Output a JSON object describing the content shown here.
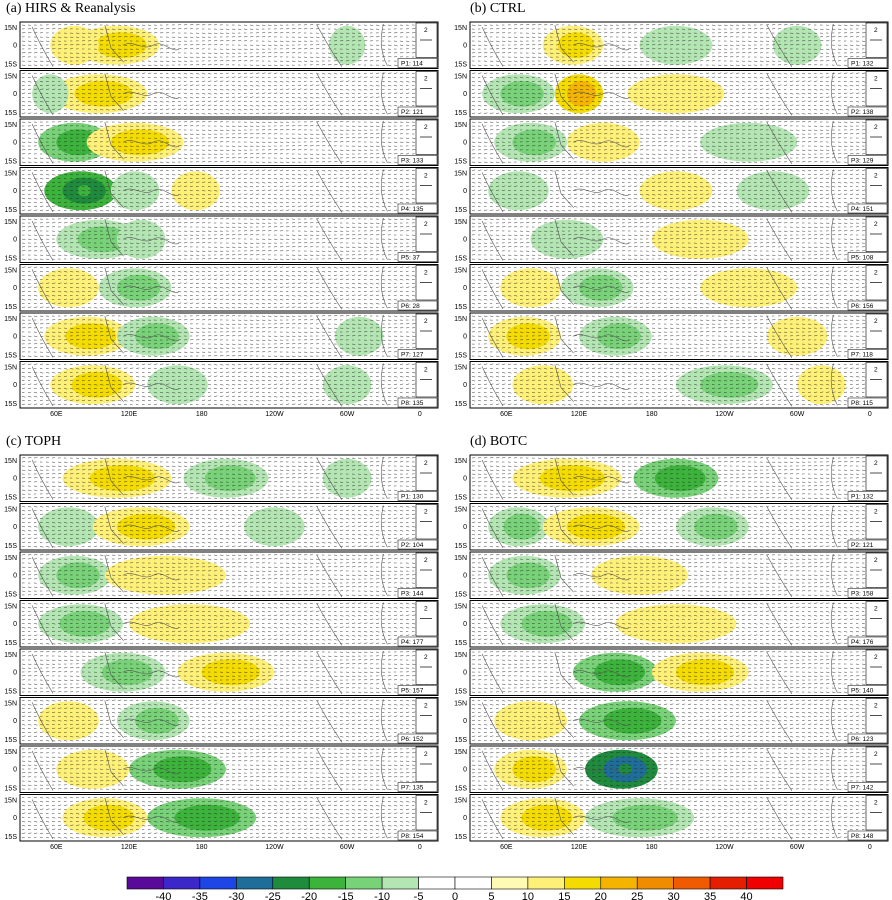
{
  "chart_data": {
    "type": "heatmap",
    "description_units": "OLR anomaly shading with wind anomaly vectors, 8 phases per panel",
    "panels": [
      {
        "label": "(a) HIRS & Reanalysis",
        "phases": [
          {
            "name": "P1",
            "count": "114"
          },
          {
            "name": "P2",
            "count": "121"
          },
          {
            "name": "P3",
            "count": "133"
          },
          {
            "name": "P4",
            "count": "135"
          },
          {
            "name": "P5",
            "count": "37"
          },
          {
            "name": "P6",
            "count": "28"
          },
          {
            "name": "P7",
            "count": "127"
          },
          {
            "name": "P8",
            "count": "135"
          }
        ],
        "blobs": [
          {
            "row": 0,
            "lon": 110,
            "w": 35,
            "v": 15
          },
          {
            "row": 0,
            "lon": 75,
            "w": 20,
            "v": 10
          },
          {
            "row": 0,
            "lon": 300,
            "w": 15,
            "v": -10
          },
          {
            "row": 1,
            "lon": 95,
            "w": 40,
            "v": 15
          },
          {
            "row": 1,
            "lon": 55,
            "w": 15,
            "v": -10
          },
          {
            "row": 2,
            "lon": 75,
            "w": 30,
            "v": -20
          },
          {
            "row": 2,
            "lon": 125,
            "w": 40,
            "v": 15
          },
          {
            "row": 3,
            "lon": 80,
            "w": 30,
            "v": -25
          },
          {
            "row": 3,
            "lon": 125,
            "w": 20,
            "v": -10
          },
          {
            "row": 3,
            "lon": 175,
            "w": 20,
            "v": 10
          },
          {
            "row": 4,
            "lon": 95,
            "w": 35,
            "v": -15
          },
          {
            "row": 4,
            "lon": 130,
            "w": 20,
            "v": -10
          },
          {
            "row": 5,
            "lon": 125,
            "w": 30,
            "v": -15
          },
          {
            "row": 5,
            "lon": 70,
            "w": 25,
            "v": 10
          },
          {
            "row": 6,
            "lon": 85,
            "w": 35,
            "v": 15
          },
          {
            "row": 6,
            "lon": 140,
            "w": 30,
            "v": -15
          },
          {
            "row": 6,
            "lon": 310,
            "w": 20,
            "v": -10
          },
          {
            "row": 7,
            "lon": 90,
            "w": 35,
            "v": 15
          },
          {
            "row": 7,
            "lon": 160,
            "w": 25,
            "v": -10
          },
          {
            "row": 7,
            "lon": 300,
            "w": 20,
            "v": -10
          }
        ]
      },
      {
        "label": "(b) CTRL",
        "phases": [
          {
            "name": "P1",
            "count": "132"
          },
          {
            "name": "P2",
            "count": "138"
          },
          {
            "name": "P3",
            "count": "129"
          },
          {
            "name": "P4",
            "count": "151"
          },
          {
            "name": "P5",
            "count": "108"
          },
          {
            "name": "P6",
            "count": "156"
          },
          {
            "name": "P7",
            "count": "118"
          },
          {
            "name": "P8",
            "count": "115"
          }
        ],
        "blobs": [
          {
            "row": 0,
            "lon": 115,
            "w": 25,
            "v": 15
          },
          {
            "row": 0,
            "lon": 200,
            "w": 30,
            "v": -10
          },
          {
            "row": 0,
            "lon": 300,
            "w": 20,
            "v": -10
          },
          {
            "row": 1,
            "lon": 70,
            "w": 30,
            "v": -15
          },
          {
            "row": 1,
            "lon": 120,
            "w": 20,
            "v": 20
          },
          {
            "row": 1,
            "lon": 200,
            "w": 40,
            "v": 10
          },
          {
            "row": 2,
            "lon": 80,
            "w": 30,
            "v": -15
          },
          {
            "row": 2,
            "lon": 140,
            "w": 30,
            "v": 10
          },
          {
            "row": 2,
            "lon": 260,
            "w": 40,
            "v": -10
          },
          {
            "row": 3,
            "lon": 70,
            "w": 25,
            "v": -10
          },
          {
            "row": 3,
            "lon": 200,
            "w": 30,
            "v": 10
          },
          {
            "row": 3,
            "lon": 280,
            "w": 30,
            "v": -10
          },
          {
            "row": 4,
            "lon": 110,
            "w": 30,
            "v": -10
          },
          {
            "row": 4,
            "lon": 220,
            "w": 40,
            "v": 10
          },
          {
            "row": 5,
            "lon": 80,
            "w": 25,
            "v": 10
          },
          {
            "row": 5,
            "lon": 135,
            "w": 30,
            "v": -15
          },
          {
            "row": 5,
            "lon": 260,
            "w": 40,
            "v": 10
          },
          {
            "row": 6,
            "lon": 75,
            "w": 30,
            "v": 15
          },
          {
            "row": 6,
            "lon": 150,
            "w": 30,
            "v": -15
          },
          {
            "row": 6,
            "lon": 300,
            "w": 25,
            "v": 10
          },
          {
            "row": 7,
            "lon": 90,
            "w": 25,
            "v": 10
          },
          {
            "row": 7,
            "lon": 240,
            "w": 40,
            "v": -15
          },
          {
            "row": 7,
            "lon": 320,
            "w": 20,
            "v": 10
          }
        ]
      },
      {
        "label": "(c) TOPH",
        "phases": [
          {
            "name": "P1",
            "count": "130"
          },
          {
            "name": "P2",
            "count": "104"
          },
          {
            "name": "P3",
            "count": "144"
          },
          {
            "name": "P4",
            "count": "177"
          },
          {
            "name": "P5",
            "count": "157"
          },
          {
            "name": "P6",
            "count": "152"
          },
          {
            "name": "P7",
            "count": "135"
          },
          {
            "name": "P8",
            "count": "154"
          }
        ],
        "blobs": [
          {
            "row": 0,
            "lon": 110,
            "w": 45,
            "v": 15
          },
          {
            "row": 0,
            "lon": 200,
            "w": 35,
            "v": -15
          },
          {
            "row": 0,
            "lon": 300,
            "w": 20,
            "v": -10
          },
          {
            "row": 1,
            "lon": 70,
            "w": 25,
            "v": -10
          },
          {
            "row": 1,
            "lon": 130,
            "w": 40,
            "v": 15
          },
          {
            "row": 1,
            "lon": 240,
            "w": 25,
            "v": -10
          },
          {
            "row": 2,
            "lon": 75,
            "w": 30,
            "v": -15
          },
          {
            "row": 2,
            "lon": 150,
            "w": 50,
            "v": 10
          },
          {
            "row": 3,
            "lon": 80,
            "w": 35,
            "v": -15
          },
          {
            "row": 3,
            "lon": 170,
            "w": 50,
            "v": 10
          },
          {
            "row": 4,
            "lon": 115,
            "w": 35,
            "v": -15
          },
          {
            "row": 4,
            "lon": 200,
            "w": 40,
            "v": 15
          },
          {
            "row": 5,
            "lon": 140,
            "w": 30,
            "v": -15
          },
          {
            "row": 5,
            "lon": 70,
            "w": 25,
            "v": 10
          },
          {
            "row": 6,
            "lon": 160,
            "w": 40,
            "v": -20
          },
          {
            "row": 6,
            "lon": 90,
            "w": 30,
            "v": 10
          },
          {
            "row": 7,
            "lon": 180,
            "w": 45,
            "v": -20
          },
          {
            "row": 7,
            "lon": 100,
            "w": 35,
            "v": 15
          }
        ]
      },
      {
        "label": "(d) BOTC",
        "phases": [
          {
            "name": "P1",
            "count": "132"
          },
          {
            "name": "P2",
            "count": "121"
          },
          {
            "name": "P3",
            "count": "158"
          },
          {
            "name": "P4",
            "count": "176"
          },
          {
            "name": "P5",
            "count": "140"
          },
          {
            "name": "P6",
            "count": "123"
          },
          {
            "name": "P7",
            "count": "142"
          },
          {
            "name": "P8",
            "count": "148"
          }
        ],
        "blobs": [
          {
            "row": 0,
            "lon": 110,
            "w": 45,
            "v": 15
          },
          {
            "row": 0,
            "lon": 200,
            "w": 35,
            "v": -20
          },
          {
            "row": 1,
            "lon": 70,
            "w": 25,
            "v": -15
          },
          {
            "row": 1,
            "lon": 130,
            "w": 40,
            "v": 15
          },
          {
            "row": 1,
            "lon": 230,
            "w": 30,
            "v": -15
          },
          {
            "row": 2,
            "lon": 75,
            "w": 30,
            "v": -15
          },
          {
            "row": 2,
            "lon": 170,
            "w": 40,
            "v": 10
          },
          {
            "row": 3,
            "lon": 90,
            "w": 35,
            "v": -15
          },
          {
            "row": 3,
            "lon": 200,
            "w": 50,
            "v": 10
          },
          {
            "row": 4,
            "lon": 150,
            "w": 35,
            "v": -20
          },
          {
            "row": 4,
            "lon": 220,
            "w": 40,
            "v": 15
          },
          {
            "row": 5,
            "lon": 160,
            "w": 40,
            "v": -20
          },
          {
            "row": 5,
            "lon": 80,
            "w": 30,
            "v": 10
          },
          {
            "row": 6,
            "lon": 155,
            "w": 30,
            "v": -30
          },
          {
            "row": 6,
            "lon": 80,
            "w": 30,
            "v": 15
          },
          {
            "row": 7,
            "lon": 170,
            "w": 45,
            "v": -15
          },
          {
            "row": 7,
            "lon": 90,
            "w": 35,
            "v": 15
          }
        ]
      }
    ],
    "latitude_labels": [
      "15N",
      "0",
      "15S"
    ],
    "longitude_ticks": [
      {
        "lon": 60,
        "label": "60E"
      },
      {
        "lon": 120,
        "label": "120E"
      },
      {
        "lon": 180,
        "label": "180"
      },
      {
        "lon": 240,
        "label": "120W"
      },
      {
        "lon": 300,
        "label": "60W"
      },
      {
        "lon": 360,
        "label": "0"
      }
    ],
    "lon_range": [
      30,
      375
    ],
    "reference_vector": "2",
    "colorbar": {
      "ticks": [
        "-40",
        "-35",
        "-30",
        "-25",
        "-20",
        "-15",
        "-10",
        "-5",
        "0",
        "5",
        "10",
        "15",
        "20",
        "25",
        "30",
        "35",
        "40"
      ],
      "colors": [
        "#5a0a9a",
        "#3c28c8",
        "#1e46e6",
        "#1f6e9a",
        "#1e8c3c",
        "#3cb43c",
        "#78d278",
        "#b4e6b4",
        "#ffffff",
        "#ffffff",
        "#fffab4",
        "#fff078",
        "#f5dc00",
        "#f5b400",
        "#f08c00",
        "#f05a00",
        "#e61e00",
        "#f00000"
      ]
    }
  }
}
